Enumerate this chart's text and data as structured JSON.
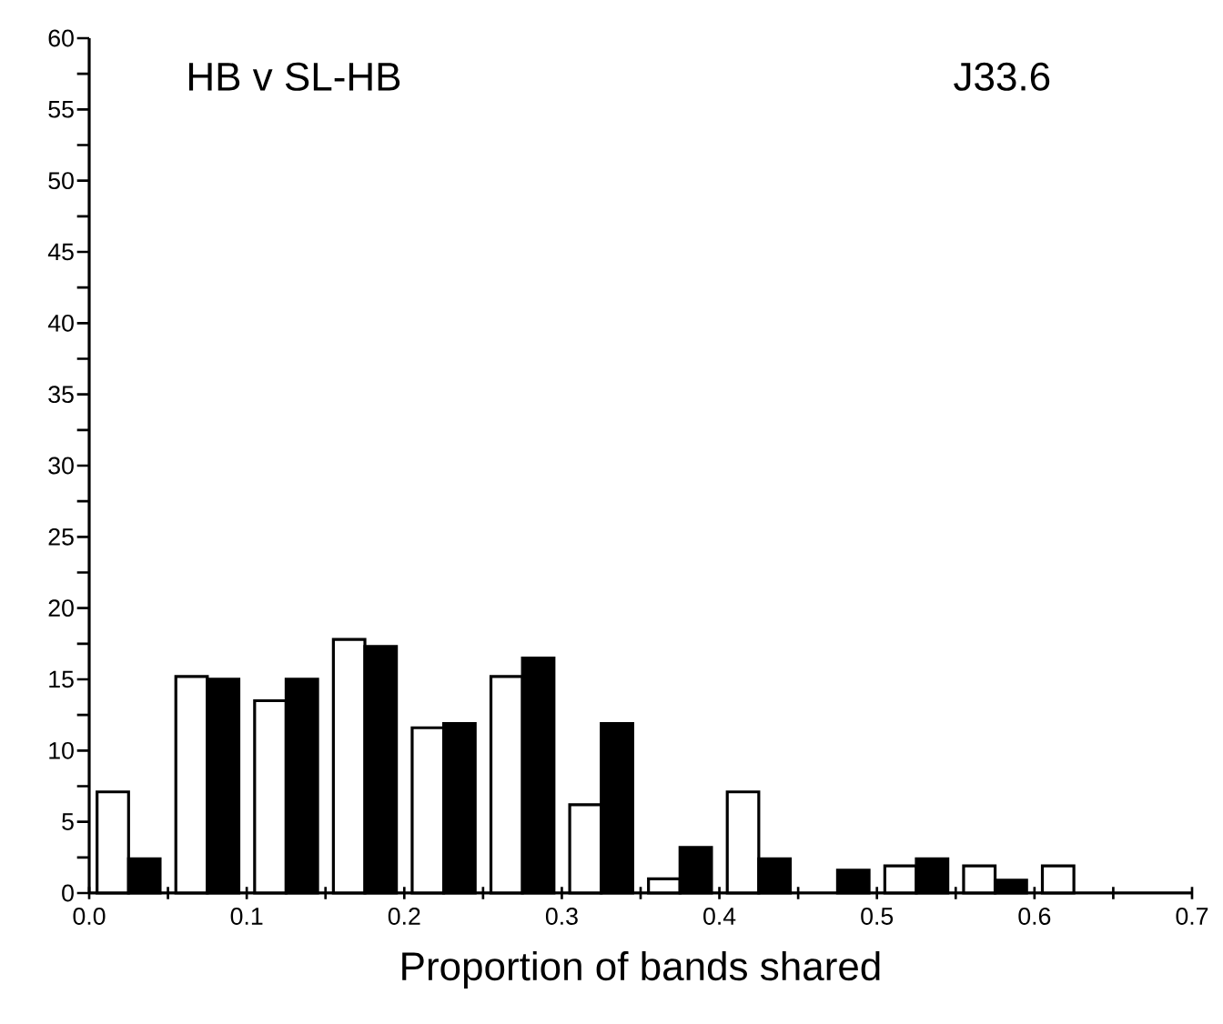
{
  "chart_data": {
    "type": "bar",
    "xlabel": "Proportion of bands shared",
    "annotations": [
      "HB v SL-HB",
      "J33.6"
    ],
    "x": [
      0.025,
      0.075,
      0.125,
      0.175,
      0.225,
      0.275,
      0.325,
      0.375,
      0.425,
      0.475,
      0.525,
      0.575,
      0.625
    ],
    "series": [
      {
        "color": "#ffffff",
        "values": [
          7.1,
          15.2,
          13.5,
          17.8,
          11.6,
          15.2,
          6.2,
          1.0,
          7.1,
          null,
          1.9,
          1.9,
          1.9
        ]
      },
      {
        "color": "#000000",
        "values": [
          2.4,
          15.0,
          15.0,
          17.3,
          11.9,
          16.5,
          11.9,
          3.2,
          2.4,
          1.6,
          2.4,
          0.9,
          null
        ]
      }
    ],
    "xlim": [
      0,
      0.7
    ],
    "ylim": [
      0,
      60
    ],
    "xticks": [
      {
        "value": 0.0,
        "label": "0.0"
      },
      {
        "value": 0.05,
        "label": null
      },
      0.1,
      {
        "value": 0.15,
        "label": null
      },
      0.2,
      {
        "value": 0.25,
        "label": null
      },
      0.3,
      {
        "value": 0.35,
        "label": null
      },
      0.4,
      {
        "value": 0.45,
        "label": null
      },
      0.5,
      {
        "value": 0.55,
        "label": null
      },
      0.6,
      {
        "value": 0.65,
        "label": null
      },
      0.7
    ],
    "yticks": [
      0,
      {
        "value": 2.5,
        "label": null
      },
      5,
      {
        "value": 7.5,
        "label": null
      },
      10,
      {
        "value": 12.5,
        "label": null
      },
      15,
      {
        "value": 17.5,
        "label": null
      },
      20,
      {
        "value": 22.5,
        "label": null
      },
      25,
      {
        "value": 27.5,
        "label": null
      },
      30,
      {
        "value": 32.5,
        "label": null
      },
      35,
      {
        "value": 37.5,
        "label": null
      },
      40,
      {
        "value": 42.5,
        "label": null
      },
      45,
      {
        "value": 47.5,
        "label": null
      },
      50,
      {
        "value": 52.5,
        "label": null
      },
      55,
      {
        "value": 57.5,
        "label": null
      },
      60
    ]
  }
}
